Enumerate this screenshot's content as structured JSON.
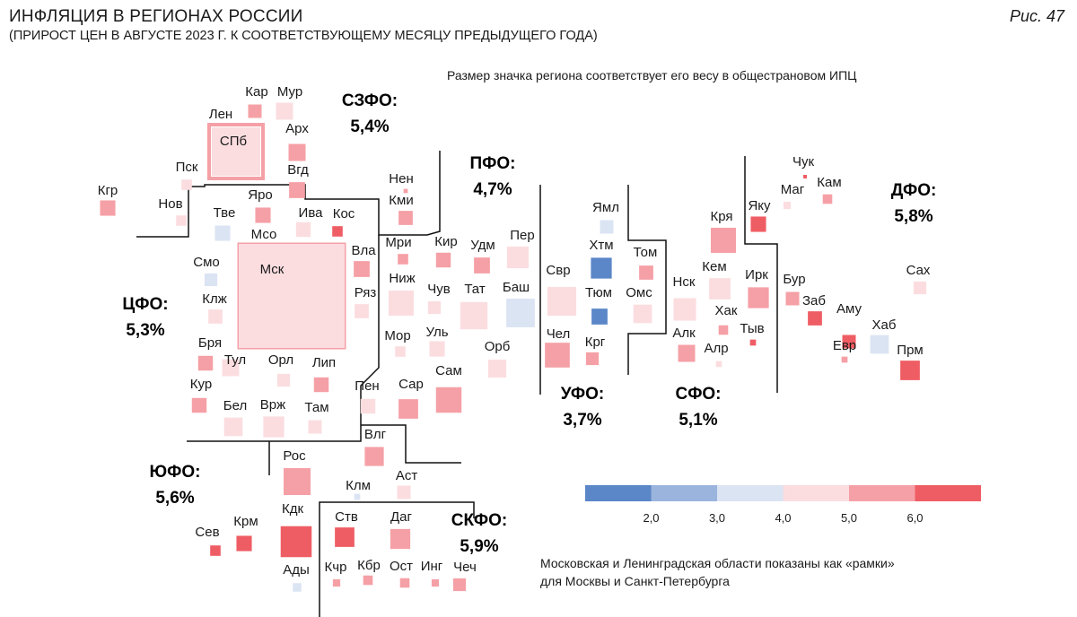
{
  "header": {
    "title": "ИНФЛЯЦИЯ В РЕГИОНАХ РОССИИ",
    "subtitle": "(ПРИРОСТ ЦЕН В АВГУСТЕ 2023 Г. К СООТВЕТСТВУЮЩЕМУ МЕСЯЦУ ПРЕДЫДУЩЕГО ГОДА)",
    "figure": "Рис. 47"
  },
  "notes": {
    "size_note": "Размер значка региона соответствует его весу в общестрановом ИПЦ",
    "frames_note_line1": "Московская и Ленинградская области показаны как «рамки»",
    "frames_note_line2": "для Москвы и Санкт-Петербурга"
  },
  "colors": {
    "c1": "#5b86c8",
    "c2": "#9ab4dd",
    "c3": "#dbe4f3",
    "c4": "#fbdde0",
    "c5": "#f5a0a6",
    "c6": "#ef5d64",
    "border": "#111111"
  },
  "chart_data": {
    "type": "tile-map",
    "title": "ИНФЛЯЦИЯ В РЕГИОНАХ РОССИИ",
    "subtitle": "(ПРИРОСТ ЦЕН В АВГУСТЕ 2023 Г. К СООТВЕТСТВУЮЩЕМУ МЕСЯЦУ ПРЕДЫДУЩЕГО ГОДА)",
    "legend": {
      "bin_edges": [
        "2,0",
        "3,0",
        "4,0",
        "5,0",
        "6,0"
      ],
      "bins": [
        "<2,0",
        "2,0–3,0",
        "3,0–4,0",
        "4,0–5,0",
        "5,0–6,0",
        ">6,0"
      ]
    },
    "districts": [
      {
        "name": "СЗФО:",
        "value": "5,4%"
      },
      {
        "name": "ПФО:",
        "value": "4,7%"
      },
      {
        "name": "ДФО:",
        "value": "5,8%"
      },
      {
        "name": "ЦФО:",
        "value": "5,3%"
      },
      {
        "name": "УФО:",
        "value": "3,7%"
      },
      {
        "name": "СФО:",
        "value": "5,1%"
      },
      {
        "name": "ЮФО:",
        "value": "5,6%"
      },
      {
        "name": "СКФО:",
        "value": "5,9%"
      }
    ],
    "regions": [
      {
        "label": "Кар",
        "bin": 5,
        "weight": 1.0
      },
      {
        "label": "Мур",
        "bin": 4,
        "weight": 1.6
      },
      {
        "label": "Лен",
        "bin": 5,
        "weight": 2.4,
        "frame": true
      },
      {
        "label": "СПб",
        "bin": 4,
        "weight": 9.0
      },
      {
        "label": "Арх",
        "bin": 5,
        "weight": 1.6
      },
      {
        "label": "Вгд",
        "bin": 5,
        "weight": 1.4
      },
      {
        "label": "Пск",
        "bin": 4,
        "weight": 0.6
      },
      {
        "label": "Нов",
        "bin": 4,
        "weight": 0.6
      },
      {
        "label": "Кгр",
        "bin": 5,
        "weight": 1.3
      },
      {
        "label": "Нен",
        "bin": 5,
        "weight": 0.1
      },
      {
        "label": "Кми",
        "bin": 5,
        "weight": 1.1
      },
      {
        "label": "Тве",
        "bin": 3,
        "weight": 1.3
      },
      {
        "label": "Яро",
        "bin": 5,
        "weight": 1.3
      },
      {
        "label": "Мсо",
        "bin": 5,
        "weight": 2.5,
        "frame": true
      },
      {
        "label": "Мск",
        "bin": 4,
        "weight": 30.0
      },
      {
        "label": "Ива",
        "bin": 4,
        "weight": 1.2
      },
      {
        "label": "Кос",
        "bin": 6,
        "weight": 0.6
      },
      {
        "label": "Вла",
        "bin": 5,
        "weight": 1.4
      },
      {
        "label": "Смо",
        "bin": 3,
        "weight": 0.9
      },
      {
        "label": "Клж",
        "bin": 4,
        "weight": 1.1
      },
      {
        "label": "Ряз",
        "bin": 4,
        "weight": 1.1
      },
      {
        "label": "Бря",
        "bin": 5,
        "weight": 1.2
      },
      {
        "label": "Тул",
        "bin": 4,
        "weight": 1.6
      },
      {
        "label": "Орл",
        "bin": 4,
        "weight": 0.9
      },
      {
        "label": "Лип",
        "bin": 5,
        "weight": 1.2
      },
      {
        "label": "Кур",
        "bin": 5,
        "weight": 1.2
      },
      {
        "label": "Бел",
        "bin": 4,
        "weight": 1.9
      },
      {
        "label": "Врж",
        "bin": 4,
        "weight": 2.4
      },
      {
        "label": "Там",
        "bin": 4,
        "weight": 1.0
      },
      {
        "label": "Мри",
        "bin": 5,
        "weight": 0.6
      },
      {
        "label": "Кир",
        "bin": 5,
        "weight": 1.2
      },
      {
        "label": "Удм",
        "bin": 5,
        "weight": 1.4
      },
      {
        "label": "Пер",
        "bin": 4,
        "weight": 2.6
      },
      {
        "label": "Ниж",
        "bin": 4,
        "weight": 3.5
      },
      {
        "label": "Чув",
        "bin": 4,
        "weight": 0.9
      },
      {
        "label": "Тат",
        "bin": 4,
        "weight": 4.1
      },
      {
        "label": "Баш",
        "bin": 3,
        "weight": 4.5
      },
      {
        "label": "Мор",
        "bin": 4,
        "weight": 0.6
      },
      {
        "label": "Уль",
        "bin": 4,
        "weight": 1.3
      },
      {
        "label": "Орб",
        "bin": 4,
        "weight": 1.8
      },
      {
        "label": "Пен",
        "bin": 4,
        "weight": 1.2
      },
      {
        "label": "Сар",
        "bin": 5,
        "weight": 2.1
      },
      {
        "label": "Сам",
        "bin": 5,
        "weight": 3.6
      },
      {
        "label": "Свр",
        "bin": 4,
        "weight": 4.6
      },
      {
        "label": "Ямл",
        "bin": 3,
        "weight": 1.0
      },
      {
        "label": "Хтм",
        "bin": 1,
        "weight": 2.4
      },
      {
        "label": "Тюм",
        "bin": 1,
        "weight": 1.4
      },
      {
        "label": "Чел",
        "bin": 5,
        "weight": 3.4
      },
      {
        "label": "Крг",
        "bin": 5,
        "weight": 0.9
      },
      {
        "label": "Том",
        "bin": 5,
        "weight": 1.1
      },
      {
        "label": "Омс",
        "bin": 4,
        "weight": 1.9
      },
      {
        "label": "Кря",
        "bin": 5,
        "weight": 3.5
      },
      {
        "label": "Нск",
        "bin": 4,
        "weight": 2.8
      },
      {
        "label": "Кем",
        "bin": 4,
        "weight": 2.5
      },
      {
        "label": "Хак",
        "bin": 5,
        "weight": 0.5
      },
      {
        "label": "Алк",
        "bin": 5,
        "weight": 1.6
      },
      {
        "label": "Алр",
        "bin": 4,
        "weight": 0.2
      },
      {
        "label": "Ирк",
        "bin": 5,
        "weight": 2.4
      },
      {
        "label": "Тыв",
        "bin": 6,
        "weight": 0.2
      },
      {
        "label": "Яку",
        "bin": 6,
        "weight": 1.3
      },
      {
        "label": "Чук",
        "bin": 6,
        "weight": 0.05
      },
      {
        "label": "Маг",
        "bin": 4,
        "weight": 0.3
      },
      {
        "label": "Кам",
        "bin": 5,
        "weight": 0.5
      },
      {
        "label": "Бур",
        "bin": 5,
        "weight": 1.0
      },
      {
        "label": "Заб",
        "bin": 6,
        "weight": 1.1
      },
      {
        "label": "Аму",
        "bin": 6,
        "weight": 1.0
      },
      {
        "label": "Евр",
        "bin": 5,
        "weight": 0.2
      },
      {
        "label": "Хаб",
        "bin": 3,
        "weight": 1.9
      },
      {
        "label": "Сах",
        "bin": 4,
        "weight": 0.9
      },
      {
        "label": "Прм",
        "bin": 6,
        "weight": 2.1
      },
      {
        "label": "Влг",
        "bin": 5,
        "weight": 2.0
      },
      {
        "label": "Аст",
        "bin": 4,
        "weight": 1.0
      },
      {
        "label": "Клм",
        "bin": 3,
        "weight": 0.2
      },
      {
        "label": "Рос",
        "bin": 5,
        "weight": 4.0
      },
      {
        "label": "Кдк",
        "bin": 6,
        "weight": 5.3
      },
      {
        "label": "Сев",
        "bin": 6,
        "weight": 0.6
      },
      {
        "label": "Крм",
        "bin": 6,
        "weight": 1.3
      },
      {
        "label": "Ады",
        "bin": 3,
        "weight": 0.4
      },
      {
        "label": "Ств",
        "bin": 6,
        "weight": 2.1
      },
      {
        "label": "Даг",
        "bin": 5,
        "weight": 2.2
      },
      {
        "label": "Кчр",
        "bin": 5,
        "weight": 0.3
      },
      {
        "label": "Кбр",
        "bin": 5,
        "weight": 0.5
      },
      {
        "label": "Ост",
        "bin": 5,
        "weight": 0.5
      },
      {
        "label": "Инг",
        "bin": 5,
        "weight": 0.3
      },
      {
        "label": "Чеч",
        "bin": 5,
        "weight": 0.9
      }
    ]
  }
}
